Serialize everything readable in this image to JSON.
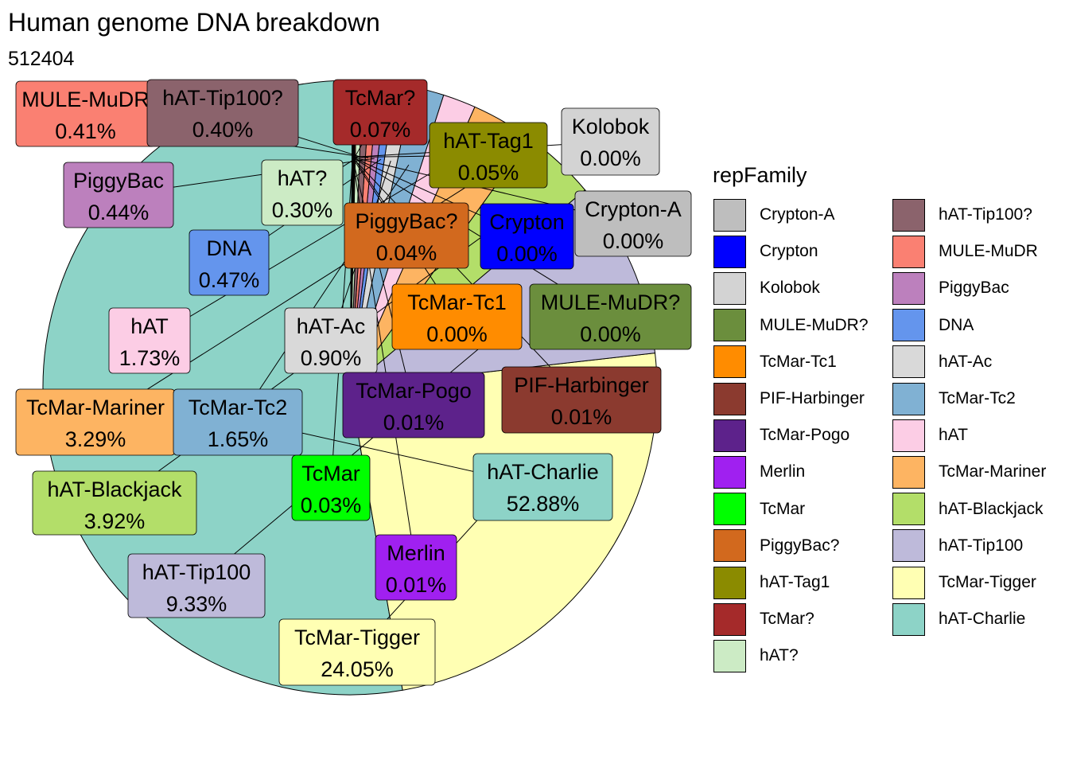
{
  "chart_data": {
    "type": "pie",
    "title": "Human genome DNA breakdown",
    "subtitle": "512404",
    "legend_title": "repFamily",
    "legend_position": "right",
    "slices": [
      {
        "name": "hAT-Charlie",
        "value": 52.88,
        "label": "52.88%",
        "color": "#8DD3C7"
      },
      {
        "name": "TcMar-Tigger",
        "value": 24.05,
        "label": "24.05%",
        "color": "#FFFFB3"
      },
      {
        "name": "hAT-Tip100",
        "value": 9.33,
        "label": "9.33%",
        "color": "#BEBADA"
      },
      {
        "name": "hAT-Blackjack",
        "value": 3.92,
        "label": "3.92%",
        "color": "#B3DE69"
      },
      {
        "name": "TcMar-Mariner",
        "value": 3.29,
        "label": "3.29%",
        "color": "#FDB462"
      },
      {
        "name": "hAT",
        "value": 1.73,
        "label": "1.73%",
        "color": "#FCCDE5"
      },
      {
        "name": "TcMar-Tc2",
        "value": 1.65,
        "label": "1.65%",
        "color": "#80B1D3"
      },
      {
        "name": "hAT-Ac",
        "value": 0.9,
        "label": "0.90%",
        "color": "#D9D9D9"
      },
      {
        "name": "DNA",
        "value": 0.47,
        "label": "0.47%",
        "color": "#6495ED"
      },
      {
        "name": "PiggyBac",
        "value": 0.44,
        "label": "0.44%",
        "color": "#BC80BD"
      },
      {
        "name": "MULE-MuDR",
        "value": 0.41,
        "label": "0.41%",
        "color": "#FA8072"
      },
      {
        "name": "hAT-Tip100?",
        "value": 0.4,
        "label": "0.40%",
        "color": "#8B636C"
      },
      {
        "name": "hAT?",
        "value": 0.3,
        "label": "0.30%",
        "color": "#CCEBC5"
      },
      {
        "name": "TcMar?",
        "value": 0.07,
        "label": "0.07%",
        "color": "#A52A2A"
      },
      {
        "name": "hAT-Tag1",
        "value": 0.05,
        "label": "0.05%",
        "color": "#8B8B00"
      },
      {
        "name": "PiggyBac?",
        "value": 0.04,
        "label": "0.04%",
        "color": "#D2691E"
      },
      {
        "name": "TcMar",
        "value": 0.03,
        "label": "0.03%",
        "color": "#00FF00"
      },
      {
        "name": "Merlin",
        "value": 0.01,
        "label": "0.01%",
        "color": "#A020F0"
      },
      {
        "name": "TcMar-Pogo",
        "value": 0.01,
        "label": "0.01%",
        "color": "#5D228B"
      },
      {
        "name": "PIF-Harbinger",
        "value": 0.01,
        "label": "0.01%",
        "color": "#8B3A2F"
      },
      {
        "name": "TcMar-Tc1",
        "value": 0.0,
        "label": "0.00%",
        "color": "#FF8C00"
      },
      {
        "name": "MULE-MuDR?",
        "value": 0.0,
        "label": "0.00%",
        "color": "#6B8E3D"
      },
      {
        "name": "Kolobok",
        "value": 0.0,
        "label": "0.00%",
        "color": "#D3D3D3"
      },
      {
        "name": "Crypton",
        "value": 0.0,
        "label": "0.00%",
        "color": "#0000FF"
      },
      {
        "name": "Crypton-A",
        "value": 0.0,
        "label": "0.00%",
        "color": "#BEBEBE"
      }
    ],
    "legend_order": [
      "Crypton-A",
      "Crypton",
      "Kolobok",
      "MULE-MuDR?",
      "TcMar-Tc1",
      "PIF-Harbinger",
      "TcMar-Pogo",
      "Merlin",
      "TcMar",
      "PiggyBac?",
      "hAT-Tag1",
      "TcMar?",
      "hAT?",
      "hAT-Tip100?",
      "MULE-MuDR",
      "PiggyBac",
      "DNA",
      "hAT-Ac",
      "TcMar-Tc2",
      "hAT",
      "TcMar-Mariner",
      "hAT-Blackjack",
      "hAT-Tip100",
      "TcMar-Tigger",
      "hAT-Charlie"
    ]
  }
}
